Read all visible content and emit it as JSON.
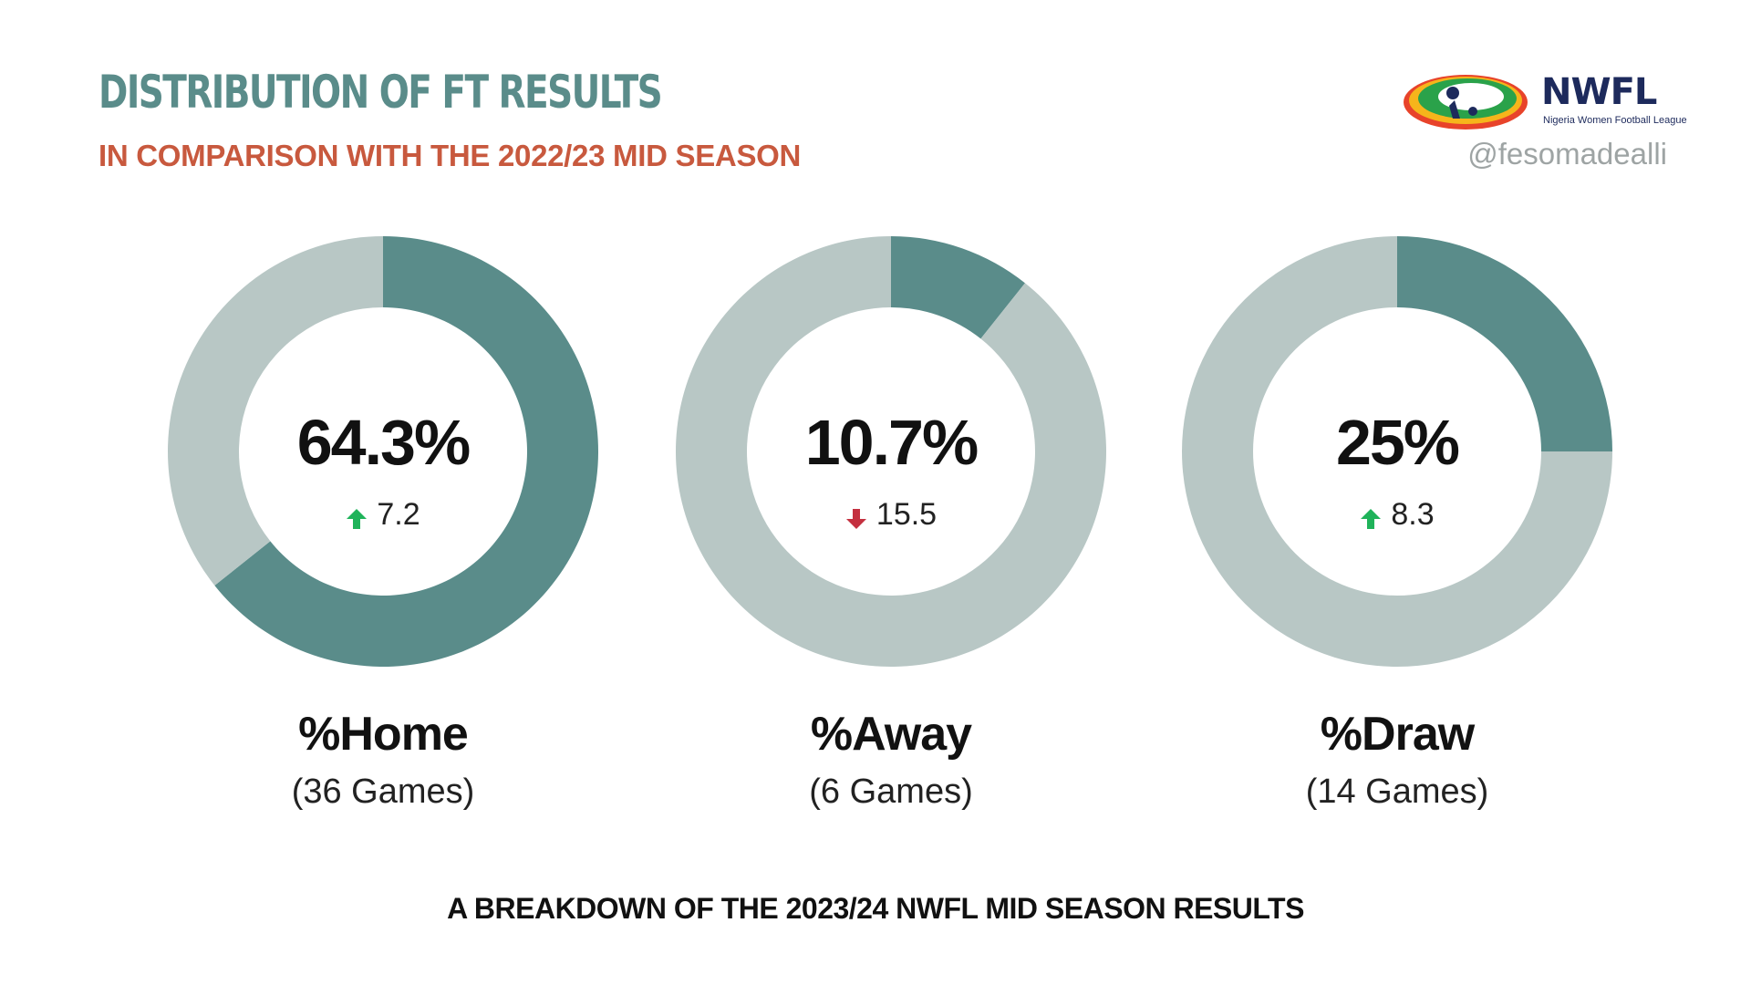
{
  "header": {
    "title": "DISTRIBUTION OF FT RESULTS",
    "subtitle": "IN COMPARISON WITH THE 2022/23 MID SEASON",
    "handle": "@fesomadealli"
  },
  "logo": {
    "wordmark": "NWFL",
    "tagline": "Nigeria Women Football League"
  },
  "colors": {
    "highlight": "#5a8c8a",
    "remainder": "#b8c7c5",
    "title": "#5a8c8a",
    "subtitle": "#c8593e",
    "increase": "#1fb35a",
    "decrease": "#c4303f"
  },
  "chart_data": [
    {
      "type": "pie",
      "label": "%Home",
      "count_text": "(36 Games)",
      "value": 64.3,
      "value_text": "64.3%",
      "change": 7.2,
      "change_text": "7.2",
      "change_direction": "up"
    },
    {
      "type": "pie",
      "label": "%Away",
      "count_text": "(6 Games)",
      "value": 10.7,
      "value_text": "10.7%",
      "change": -15.5,
      "change_text": "15.5",
      "change_direction": "down"
    },
    {
      "type": "pie",
      "label": "%Draw",
      "count_text": "(14 Games)",
      "value": 25,
      "value_text": "25%",
      "change": 8.3,
      "change_text": "8.3",
      "change_direction": "up"
    }
  ],
  "footer": {
    "caption": "A BREAKDOWN OF THE 2023/24 NWFL MID SEASON RESULTS"
  }
}
